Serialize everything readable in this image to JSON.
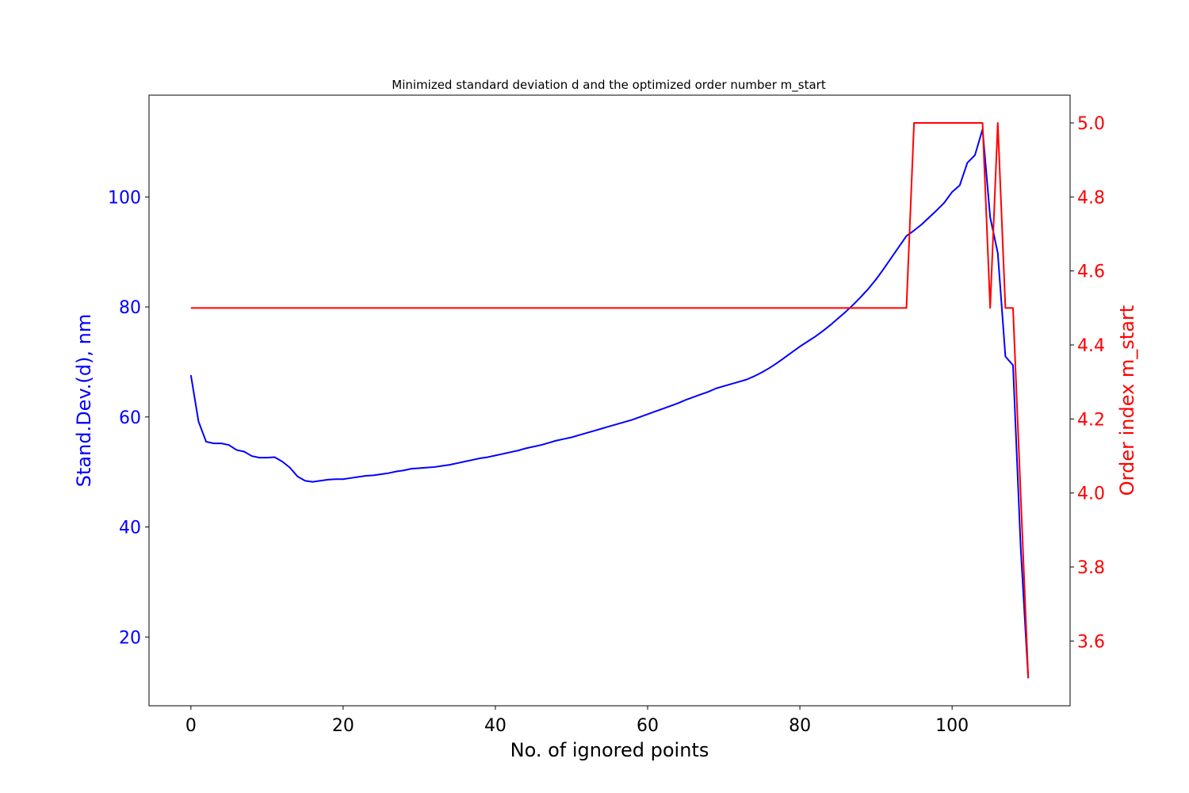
{
  "chart_data": {
    "type": "line",
    "title": "Minimized standard deviation d and the optimized order number m_start",
    "xlabel": "No. of ignored points",
    "ylabel_left": "Stand.Dev.(d), nm",
    "ylabel_right": "Order index m_start",
    "xlim": [
      -5.5,
      115.5
    ],
    "ylim_left": [
      7.5,
      118.5
    ],
    "ylim_right": [
      3.425,
      5.075
    ],
    "x_ticks": [
      0,
      20,
      40,
      60,
      80,
      100
    ],
    "y_left_ticks": [
      20,
      40,
      60,
      80,
      100
    ],
    "y_right_ticks": [
      3.6,
      3.8,
      4.0,
      4.2,
      4.4,
      4.6,
      4.8,
      5.0
    ],
    "x_tick_labels": [
      "0",
      "20",
      "40",
      "60",
      "80",
      "100"
    ],
    "y_left_tick_labels": [
      "20",
      "40",
      "60",
      "80",
      "100"
    ],
    "y_right_tick_labels": [
      "3.6",
      "3.8",
      "4.0",
      "4.2",
      "4.4",
      "4.6",
      "4.8",
      "5.0"
    ],
    "grid": false,
    "colors": {
      "left_axis": "#0000ff",
      "right_axis": "#ff0000",
      "frame": "#000000"
    },
    "series": [
      {
        "axis": "left",
        "color": "#0000ff",
        "x": [
          0,
          1,
          2,
          3,
          4,
          5,
          6,
          7,
          8,
          9,
          10,
          11,
          12,
          13,
          14,
          15,
          16,
          17,
          18,
          19,
          20,
          21,
          22,
          23,
          24,
          25,
          26,
          27,
          28,
          29,
          30,
          31,
          32,
          33,
          34,
          35,
          36,
          37,
          38,
          39,
          40,
          41,
          42,
          43,
          44,
          45,
          46,
          47,
          48,
          49,
          50,
          51,
          52,
          53,
          54,
          55,
          56,
          57,
          58,
          59,
          60,
          61,
          62,
          63,
          64,
          65,
          66,
          67,
          68,
          69,
          70,
          71,
          72,
          73,
          74,
          75,
          76,
          77,
          78,
          79,
          80,
          81,
          82,
          83,
          84,
          85,
          86,
          87,
          88,
          89,
          90,
          91,
          92,
          93,
          94,
          95,
          96,
          97,
          98,
          99,
          100,
          101,
          102,
          103,
          104,
          105,
          106,
          107,
          108,
          109,
          110
        ],
        "y": [
          67.6,
          59.2,
          55.5,
          55.2,
          55.2,
          54.9,
          54.0,
          53.7,
          52.9,
          52.6,
          52.6,
          52.7,
          51.9,
          50.8,
          49.2,
          48.4,
          48.2,
          48.4,
          48.6,
          48.7,
          48.7,
          48.9,
          49.1,
          49.3,
          49.4,
          49.6,
          49.8,
          50.1,
          50.3,
          50.6,
          50.7,
          50.8,
          50.9,
          51.1,
          51.3,
          51.6,
          51.9,
          52.2,
          52.5,
          52.7,
          53.0,
          53.3,
          53.6,
          53.9,
          54.3,
          54.6,
          54.9,
          55.3,
          55.7,
          56.0,
          56.3,
          56.7,
          57.1,
          57.5,
          57.9,
          58.3,
          58.7,
          59.1,
          59.5,
          60.0,
          60.5,
          61.0,
          61.5,
          62.0,
          62.5,
          63.1,
          63.6,
          64.1,
          64.6,
          65.2,
          65.6,
          66.0,
          66.4,
          66.8,
          67.4,
          68.1,
          68.9,
          69.8,
          70.8,
          71.8,
          72.8,
          73.7,
          74.6,
          75.6,
          76.7,
          77.9,
          79.1,
          80.4,
          81.8,
          83.3,
          85.0,
          86.9,
          88.9,
          90.9,
          92.9,
          93.9,
          95.0,
          96.3,
          97.6,
          99.0,
          100.9,
          102.1,
          106.2,
          107.6,
          112.3,
          96.3,
          89.8,
          71.0,
          69.4,
          36.5,
          12.5
        ]
      },
      {
        "axis": "right",
        "color": "#ff0000",
        "x": [
          0,
          94,
          95,
          104,
          105,
          106,
          107,
          108,
          109,
          110
        ],
        "y": [
          4.5,
          4.5,
          5.0,
          5.0,
          4.5,
          5.0,
          4.5,
          4.5,
          4.0,
          3.5
        ]
      }
    ]
  }
}
